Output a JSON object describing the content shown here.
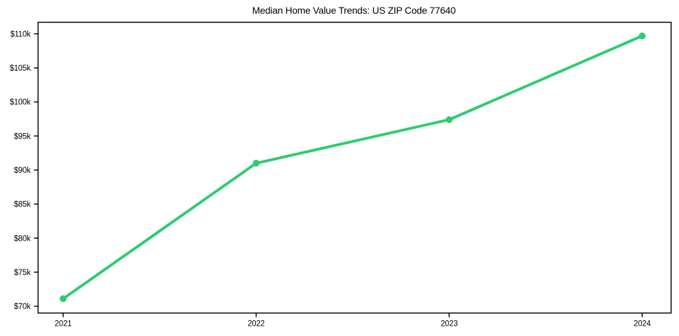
{
  "chart_data": {
    "type": "line",
    "title": "Median Home Value Trends: US ZIP Code 77640",
    "xlabel": "",
    "ylabel": "",
    "x": [
      2021,
      2022,
      2023,
      2024
    ],
    "x_tick_labels": [
      "2021",
      "2022",
      "2023",
      "2024"
    ],
    "series": [
      {
        "name": "Median home value",
        "values": [
          71100,
          91000,
          97400,
          109700
        ],
        "color": "#2ecc71",
        "marker": "circle",
        "line_width": 4,
        "marker_radius": 5
      }
    ],
    "y_ticks": [
      {
        "value": 70000,
        "label": "$70k"
      },
      {
        "value": 75000,
        "label": "$75k"
      },
      {
        "value": 80000,
        "label": "$80k"
      },
      {
        "value": 85000,
        "label": "$85k"
      },
      {
        "value": 90000,
        "label": "$90k"
      },
      {
        "value": 95000,
        "label": "$95k"
      },
      {
        "value": 100000,
        "label": "$100k"
      },
      {
        "value": 105000,
        "label": "$105k"
      },
      {
        "value": 110000,
        "label": "$110k"
      }
    ],
    "xlim": [
      2020.87,
      2024.15
    ],
    "ylim": [
      69000,
      111700
    ],
    "grid": false,
    "legend": false,
    "background_color": "#ffffff",
    "axis_color": "#000000",
    "tick_label_color": "#000000"
  }
}
